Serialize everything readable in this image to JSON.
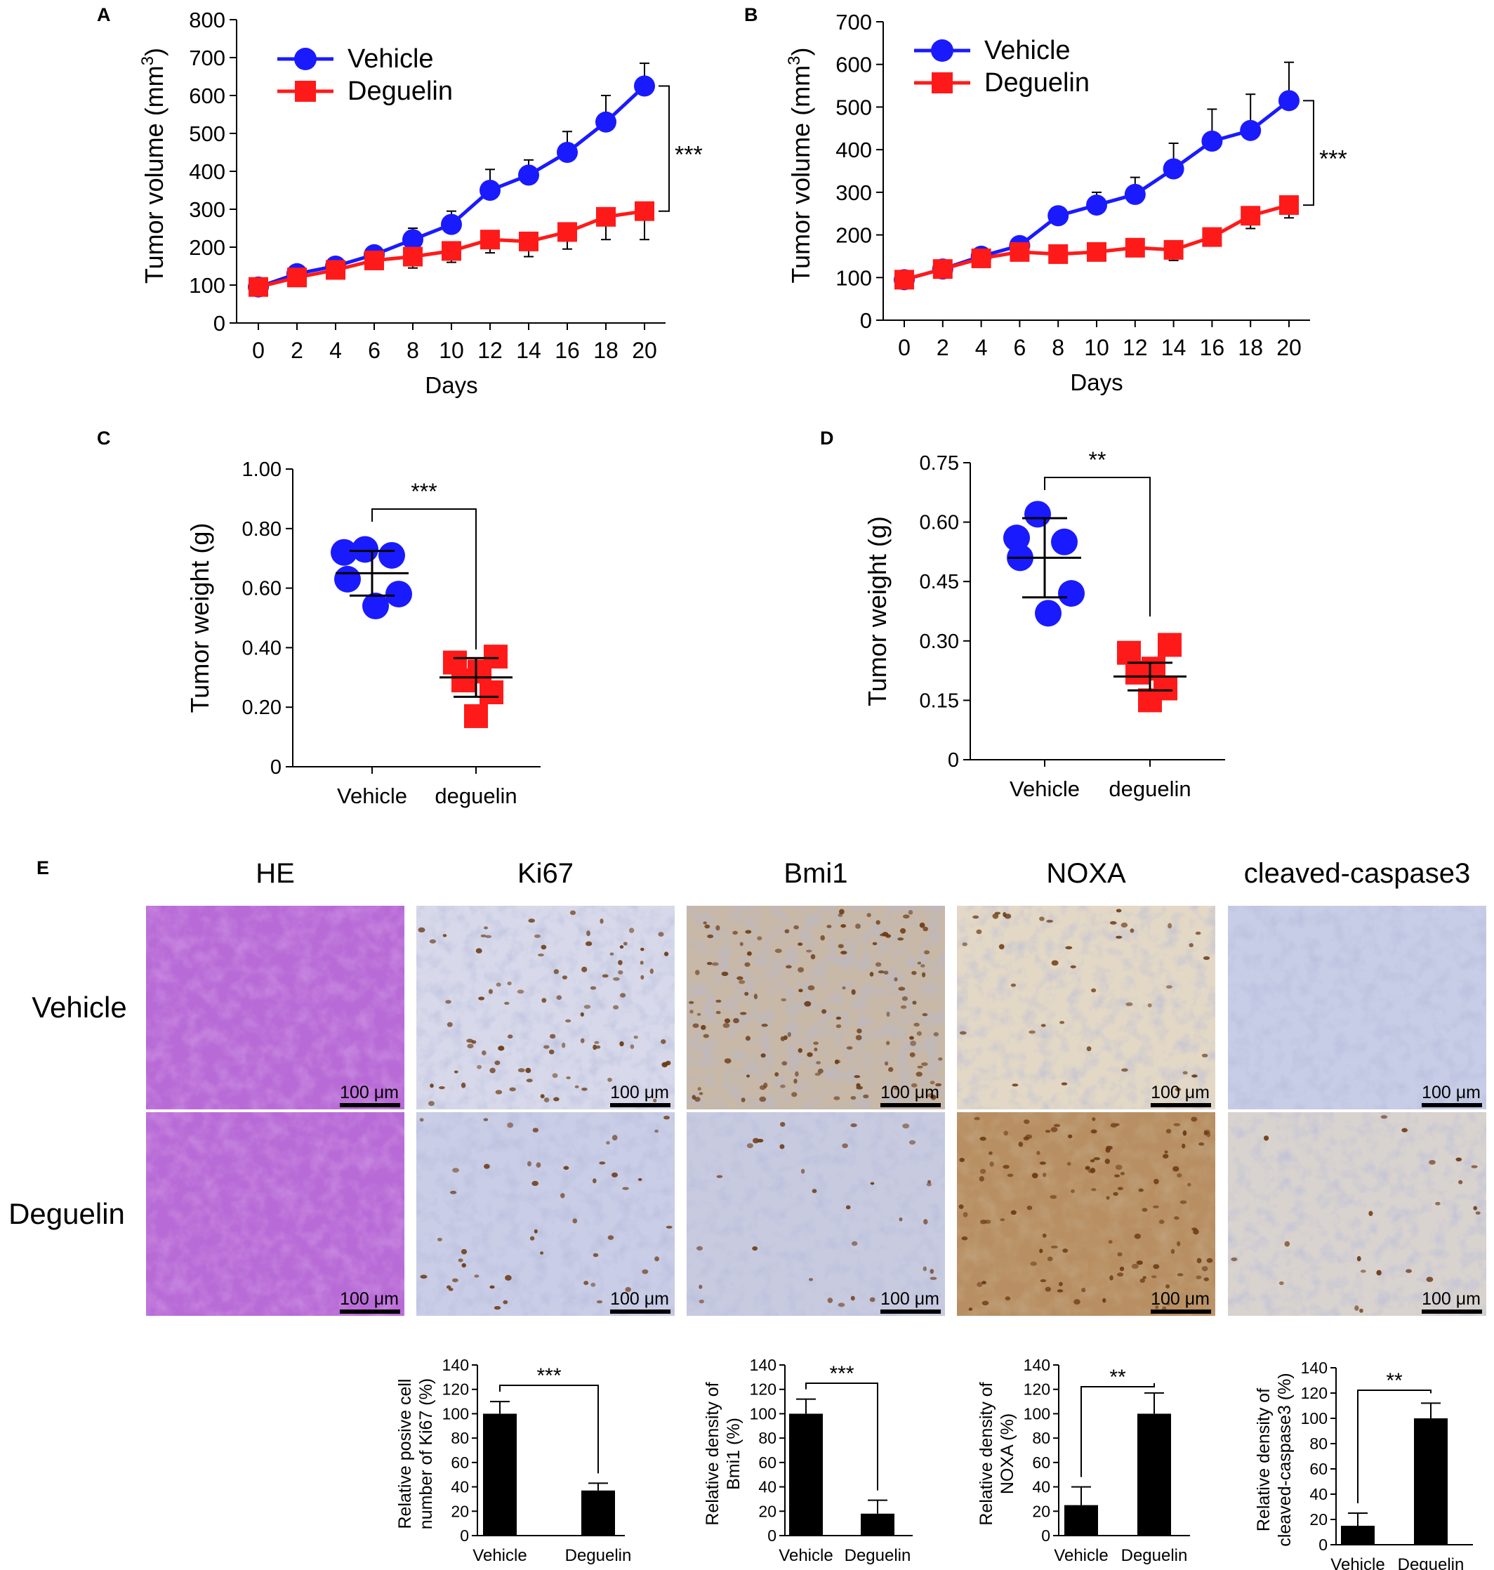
{
  "colors": {
    "vehicle": "#1a1aff",
    "deguelin": "#ff1a1a",
    "bar": "#000000",
    "axis": "#000000",
    "he_tissue": "#b86ad6",
    "ihc_blue": "#a9b3dd",
    "ihc_brown": "#6b3a14"
  },
  "panel_labels": [
    "A",
    "B",
    "C",
    "D",
    "E"
  ],
  "chart_data": [
    {
      "panel": "A",
      "type": "line",
      "xlabel": "Days",
      "ylabel": "Tumor volume (mm",
      "ylabel_sup": "3",
      "ylabel_end": ")",
      "x": [
        0,
        2,
        4,
        6,
        8,
        10,
        12,
        14,
        16,
        18,
        20
      ],
      "xticks": [
        "0",
        "2",
        "4",
        "6",
        "8",
        "10",
        "12",
        "14",
        "16",
        "18",
        "20"
      ],
      "yticks": [
        "0",
        "100",
        "200",
        "300",
        "400",
        "500",
        "600",
        "700",
        "800"
      ],
      "ylim": [
        0,
        800
      ],
      "series": [
        {
          "name": "Vehicle",
          "marker": "circle",
          "values": [
            95,
            130,
            150,
            180,
            220,
            260,
            350,
            390,
            450,
            530,
            625
          ],
          "errors": [
            10,
            12,
            14,
            15,
            30,
            35,
            55,
            40,
            55,
            70,
            60
          ]
        },
        {
          "name": "Deguelin",
          "marker": "square",
          "values": [
            95,
            120,
            140,
            165,
            175,
            190,
            220,
            215,
            240,
            280,
            295
          ],
          "errors": [
            10,
            15,
            18,
            20,
            30,
            30,
            35,
            40,
            45,
            60,
            75
          ]
        }
      ],
      "significance": "***",
      "legend": "top-left"
    },
    {
      "panel": "B",
      "type": "line",
      "xlabel": "Days",
      "ylabel": "Tumor volume (mm",
      "ylabel_sup": "3",
      "ylabel_end": ")",
      "x": [
        0,
        2,
        4,
        6,
        8,
        10,
        12,
        14,
        16,
        18,
        20
      ],
      "xticks": [
        "0",
        "2",
        "4",
        "6",
        "8",
        "10",
        "12",
        "14",
        "16",
        "18",
        "20"
      ],
      "yticks": [
        "0",
        "100",
        "200",
        "300",
        "400",
        "500",
        "600",
        "700"
      ],
      "ylim": [
        0,
        700
      ],
      "series": [
        {
          "name": "Vehicle",
          "marker": "circle",
          "values": [
            95,
            120,
            150,
            175,
            245,
            270,
            295,
            355,
            420,
            445,
            515
          ],
          "errors": [
            10,
            12,
            15,
            15,
            20,
            30,
            40,
            60,
            75,
            85,
            90
          ]
        },
        {
          "name": "Deguelin",
          "marker": "square",
          "values": [
            95,
            120,
            145,
            160,
            155,
            160,
            170,
            165,
            195,
            245,
            270
          ],
          "errors": [
            10,
            12,
            15,
            15,
            15,
            15,
            20,
            25,
            20,
            30,
            30
          ]
        }
      ],
      "significance": "***",
      "legend": "top-left"
    },
    {
      "panel": "C",
      "type": "scatter",
      "ylabel": "Tumor weight (g)",
      "categories": [
        "Vehicle",
        "deguelin"
      ],
      "yticks": [
        "0",
        "0.20",
        "0.40",
        "0.60",
        "0.80",
        "1.00"
      ],
      "ylim": [
        0,
        1.0
      ],
      "groups": [
        {
          "points": [
            0.73,
            0.72,
            0.71,
            0.63,
            0.58,
            0.54
          ],
          "mean": 0.65,
          "sd": 0.075
        },
        {
          "points": [
            0.37,
            0.35,
            0.32,
            0.29,
            0.25,
            0.17
          ],
          "mean": 0.3,
          "sd": 0.065
        }
      ],
      "significance": "***"
    },
    {
      "panel": "D",
      "type": "scatter",
      "ylabel": "Tumor weight (g)",
      "categories": [
        "Vehicle",
        "deguelin"
      ],
      "yticks": [
        "0",
        "0.15",
        "0.30",
        "0.45",
        "0.60",
        "0.75"
      ],
      "ylim": [
        0,
        0.75
      ],
      "groups": [
        {
          "points": [
            0.62,
            0.56,
            0.55,
            0.51,
            0.42,
            0.37
          ],
          "mean": 0.51,
          "sd": 0.1
        },
        {
          "points": [
            0.29,
            0.27,
            0.23,
            0.22,
            0.18,
            0.15
          ],
          "mean": 0.21,
          "sd": 0.035
        }
      ],
      "significance": "**"
    },
    {
      "panel": "E-Ki67",
      "type": "bar",
      "ylabel": [
        "Relative posive cell",
        "number of Ki67 (%)"
      ],
      "categories": [
        "Vehicle",
        "Deguelin"
      ],
      "values": [
        100,
        37
      ],
      "errors": [
        10,
        6
      ],
      "yticks": [
        "0",
        "20",
        "40",
        "60",
        "80",
        "100",
        "120",
        "140"
      ],
      "ylim": [
        0,
        140
      ],
      "significance": "***"
    },
    {
      "panel": "E-Bmi1",
      "type": "bar",
      "ylabel": [
        "Relative density of",
        "Bmi1  (%)"
      ],
      "categories": [
        "Vehicle",
        "Deguelin"
      ],
      "values": [
        100,
        18
      ],
      "errors": [
        12,
        11
      ],
      "yticks": [
        "0",
        "20",
        "40",
        "60",
        "80",
        "100",
        "120",
        "140"
      ],
      "ylim": [
        0,
        140
      ],
      "significance": "***"
    },
    {
      "panel": "E-NOXA",
      "type": "bar",
      "ylabel": [
        "Relative density of",
        "NOXA  (%)"
      ],
      "categories": [
        "Vehicle",
        "Deguelin"
      ],
      "values": [
        25,
        100
      ],
      "errors": [
        15,
        17
      ],
      "yticks": [
        "0",
        "20",
        "40",
        "60",
        "80",
        "100",
        "120",
        "140"
      ],
      "ylim": [
        0,
        140
      ],
      "significance": "**"
    },
    {
      "panel": "E-cleaved-caspase3",
      "type": "bar",
      "ylabel": [
        "Relative density of",
        "cleaved-caspase3  (%)"
      ],
      "categories": [
        "Vehicle",
        "Deguelin"
      ],
      "values": [
        15,
        100
      ],
      "errors": [
        10,
        12
      ],
      "yticks": [
        "0",
        "20",
        "40",
        "60",
        "80",
        "100",
        "120",
        "140"
      ],
      "ylim": [
        0,
        140
      ],
      "significance": "**"
    }
  ],
  "micrographs": {
    "columns": [
      "HE",
      "Ki67",
      "Bmi1",
      "NOXA",
      "cleaved-caspase3"
    ],
    "rows": [
      "Vehicle",
      "Deguelin"
    ],
    "scale_bar": "100 μm",
    "brown_density": [
      [
        0,
        0.35,
        0.55,
        0.15,
        0.0
      ],
      [
        0,
        0.18,
        0.12,
        0.45,
        0.08
      ]
    ],
    "tints": [
      [
        "#b86ad6",
        "#d7d9ea",
        "#c7b8a8",
        "#e3d8c6",
        "#c7cde6"
      ],
      [
        "#b86ad6",
        "#c9cde6",
        "#c8cbe0",
        "#b88f62",
        "#d9d3cf"
      ]
    ]
  }
}
